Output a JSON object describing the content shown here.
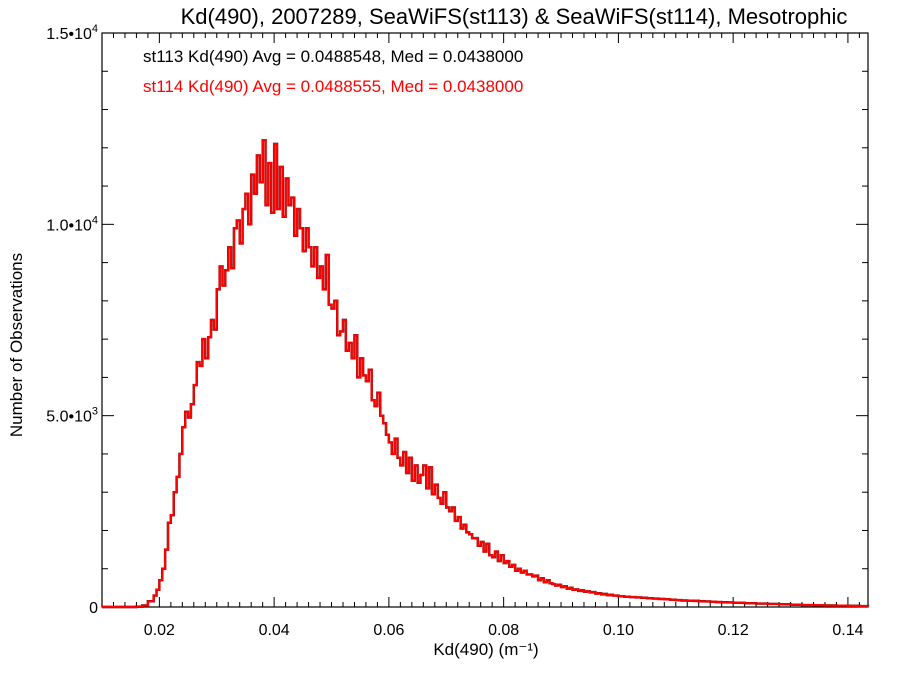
{
  "chart_data": {
    "type": "step-histogram",
    "title": "Kd(490), 2007289, SeaWiFS(st113) & SeaWiFS(st114), Mesotrophic",
    "xlabel": "Kd(490) (m⁻¹)",
    "ylabel": "Number of Observations",
    "xlim": [
      0.01,
      0.1435
    ],
    "ylim": [
      0,
      15000
    ],
    "x_ticks": [
      {
        "value": 0.02,
        "label": "0.02"
      },
      {
        "value": 0.04,
        "label": "0.04"
      },
      {
        "value": 0.06,
        "label": "0.06"
      },
      {
        "value": 0.08,
        "label": "0.08"
      },
      {
        "value": 0.1,
        "label": "0.10"
      },
      {
        "value": 0.12,
        "label": "0.12"
      },
      {
        "value": 0.14,
        "label": "0.14"
      }
    ],
    "y_ticks": [
      {
        "value": 0,
        "label": "0"
      },
      {
        "value": 5000,
        "label": "5.0•10³"
      },
      {
        "value": 10000,
        "label": "1.0•10⁴"
      },
      {
        "value": 15000,
        "label": "1.5•10⁴"
      }
    ],
    "annotations": [
      {
        "text": "st113 Kd(490) Avg = 0.0488548, Med = 0.0438000",
        "color": "#000000"
      },
      {
        "text": "st114 Kd(490) Avg = 0.0488555, Med = 0.0438000",
        "color": "#ff0000"
      }
    ],
    "series": [
      {
        "name": "st113",
        "color": "#000000",
        "points": [
          [
            0.015,
            0
          ],
          [
            0.016,
            10
          ],
          [
            0.017,
            40
          ],
          [
            0.018,
            150
          ],
          [
            0.019,
            300
          ],
          [
            0.0195,
            450
          ],
          [
            0.02,
            700
          ],
          [
            0.0205,
            1000
          ],
          [
            0.021,
            1500
          ],
          [
            0.0215,
            2200
          ],
          [
            0.022,
            2400
          ],
          [
            0.0225,
            3000
          ],
          [
            0.023,
            3400
          ],
          [
            0.0235,
            4000
          ],
          [
            0.024,
            4700
          ],
          [
            0.0245,
            5100
          ],
          [
            0.025,
            4950
          ],
          [
            0.0255,
            5300
          ],
          [
            0.026,
            5800
          ],
          [
            0.0265,
            6400
          ],
          [
            0.027,
            6300
          ],
          [
            0.0275,
            7000
          ],
          [
            0.028,
            6500
          ],
          [
            0.0285,
            7050
          ],
          [
            0.029,
            7500
          ],
          [
            0.0295,
            7250
          ],
          [
            0.03,
            8300
          ],
          [
            0.0305,
            8900
          ],
          [
            0.031,
            8400
          ],
          [
            0.0315,
            8800
          ],
          [
            0.032,
            9400
          ],
          [
            0.0325,
            8850
          ],
          [
            0.033,
            9900
          ],
          [
            0.0335,
            10100
          ],
          [
            0.034,
            9500
          ],
          [
            0.0345,
            10400
          ],
          [
            0.035,
            10800
          ],
          [
            0.0355,
            10000
          ],
          [
            0.036,
            11300
          ],
          [
            0.0365,
            10800
          ],
          [
            0.037,
            11800
          ],
          [
            0.0375,
            11100
          ],
          [
            0.038,
            12200
          ],
          [
            0.0385,
            10500
          ],
          [
            0.039,
            11600
          ],
          [
            0.0395,
            10300
          ],
          [
            0.04,
            12100
          ],
          [
            0.0405,
            10400
          ],
          [
            0.041,
            11500
          ],
          [
            0.0415,
            10200
          ],
          [
            0.042,
            11200
          ],
          [
            0.0425,
            10500
          ],
          [
            0.043,
            10700
          ],
          [
            0.0435,
            9700
          ],
          [
            0.044,
            10400
          ],
          [
            0.0445,
            9900
          ],
          [
            0.045,
            9300
          ],
          [
            0.0455,
            9900
          ],
          [
            0.046,
            9400
          ],
          [
            0.0465,
            8900
          ],
          [
            0.047,
            9400
          ],
          [
            0.0475,
            8600
          ],
          [
            0.048,
            8900
          ],
          [
            0.0485,
            8300
          ],
          [
            0.049,
            9200
          ],
          [
            0.0495,
            7900
          ],
          [
            0.05,
            7800
          ],
          [
            0.0505,
            8000
          ],
          [
            0.051,
            7100
          ],
          [
            0.0515,
            7200
          ],
          [
            0.052,
            7500
          ],
          [
            0.0525,
            6700
          ],
          [
            0.053,
            6900
          ],
          [
            0.0535,
            6500
          ],
          [
            0.054,
            7100
          ],
          [
            0.0545,
            6000
          ],
          [
            0.055,
            6500
          ],
          [
            0.0555,
            6050
          ],
          [
            0.056,
            5900
          ],
          [
            0.0565,
            6200
          ],
          [
            0.057,
            5400
          ],
          [
            0.0575,
            5250
          ],
          [
            0.058,
            5600
          ],
          [
            0.0585,
            5000
          ],
          [
            0.059,
            4800
          ],
          [
            0.0595,
            4500
          ],
          [
            0.06,
            4300
          ],
          [
            0.0605,
            4000
          ],
          [
            0.061,
            4400
          ],
          [
            0.0615,
            3900
          ],
          [
            0.062,
            3700
          ],
          [
            0.0625,
            4050
          ],
          [
            0.063,
            3500
          ],
          [
            0.0635,
            3900
          ],
          [
            0.064,
            3300
          ],
          [
            0.0645,
            3700
          ],
          [
            0.065,
            3250
          ],
          [
            0.0655,
            3450
          ],
          [
            0.066,
            3700
          ],
          [
            0.0665,
            3100
          ],
          [
            0.067,
            3650
          ],
          [
            0.0675,
            2950
          ],
          [
            0.068,
            3200
          ],
          [
            0.0685,
            2850
          ],
          [
            0.069,
            2700
          ],
          [
            0.0695,
            3000
          ],
          [
            0.07,
            2600
          ],
          [
            0.0705,
            2500
          ],
          [
            0.071,
            2600
          ],
          [
            0.0715,
            2250
          ],
          [
            0.072,
            2350
          ],
          [
            0.0725,
            2050
          ],
          [
            0.073,
            2150
          ],
          [
            0.0735,
            1950
          ],
          [
            0.074,
            1900
          ],
          [
            0.0745,
            1800
          ],
          [
            0.075,
            1800
          ],
          [
            0.0755,
            1600
          ],
          [
            0.076,
            1700
          ],
          [
            0.0765,
            1450
          ],
          [
            0.077,
            1650
          ],
          [
            0.0775,
            1350
          ],
          [
            0.078,
            1300
          ],
          [
            0.0785,
            1450
          ],
          [
            0.079,
            1200
          ],
          [
            0.0795,
            1350
          ],
          [
            0.08,
            1150
          ],
          [
            0.0805,
            1200
          ],
          [
            0.081,
            1050
          ],
          [
            0.0815,
            1100
          ],
          [
            0.082,
            950
          ],
          [
            0.0825,
            1000
          ],
          [
            0.083,
            900
          ],
          [
            0.0835,
            950
          ],
          [
            0.084,
            850
          ],
          [
            0.0845,
            850
          ],
          [
            0.085,
            800
          ],
          [
            0.0855,
            820
          ],
          [
            0.086,
            700
          ],
          [
            0.0865,
            750
          ],
          [
            0.087,
            650
          ],
          [
            0.0875,
            700
          ],
          [
            0.088,
            620
          ],
          [
            0.0885,
            600
          ],
          [
            0.089,
            560
          ],
          [
            0.0895,
            580
          ],
          [
            0.09,
            520
          ],
          [
            0.0905,
            540
          ],
          [
            0.091,
            480
          ],
          [
            0.0915,
            500
          ],
          [
            0.092,
            450
          ],
          [
            0.0925,
            460
          ],
          [
            0.093,
            420
          ],
          [
            0.0935,
            440
          ],
          [
            0.094,
            400
          ],
          [
            0.0945,
            410
          ],
          [
            0.095,
            380
          ],
          [
            0.0955,
            390
          ],
          [
            0.096,
            350
          ],
          [
            0.0965,
            360
          ],
          [
            0.097,
            330
          ],
          [
            0.0975,
            340
          ],
          [
            0.098,
            310
          ],
          [
            0.0985,
            320
          ],
          [
            0.099,
            300
          ],
          [
            0.0995,
            300
          ],
          [
            0.1,
            280
          ],
          [
            0.101,
            270
          ],
          [
            0.102,
            260
          ],
          [
            0.103,
            250
          ],
          [
            0.104,
            240
          ],
          [
            0.105,
            230
          ],
          [
            0.106,
            220
          ],
          [
            0.107,
            210
          ],
          [
            0.108,
            200
          ],
          [
            0.109,
            190
          ],
          [
            0.11,
            180
          ],
          [
            0.111,
            170
          ],
          [
            0.112,
            165
          ],
          [
            0.113,
            160
          ],
          [
            0.114,
            150
          ],
          [
            0.115,
            145
          ],
          [
            0.116,
            140
          ],
          [
            0.117,
            130
          ],
          [
            0.118,
            125
          ],
          [
            0.119,
            120
          ],
          [
            0.12,
            110
          ],
          [
            0.122,
            100
          ],
          [
            0.124,
            90
          ],
          [
            0.126,
            80
          ],
          [
            0.128,
            70
          ],
          [
            0.13,
            60
          ],
          [
            0.132,
            50
          ],
          [
            0.134,
            45
          ],
          [
            0.136,
            40
          ],
          [
            0.138,
            35
          ],
          [
            0.14,
            30
          ],
          [
            0.142,
            25
          ],
          [
            0.1435,
            20
          ]
        ]
      },
      {
        "name": "st114",
        "color": "#ff0000",
        "same_as": "st113"
      }
    ]
  }
}
